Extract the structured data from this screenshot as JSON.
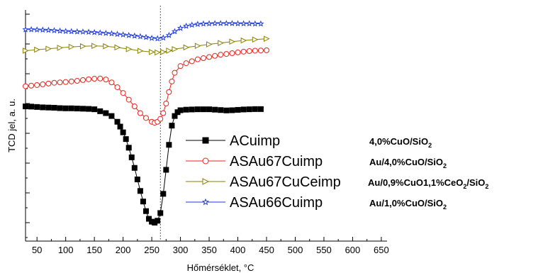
{
  "chart_data": {
    "type": "scatter",
    "xlabel": "Hőmérséklet, °C",
    "ylabel": "TCD jel, a. u.",
    "xlim": [
      30,
      660
    ],
    "ylim": [
      0,
      100
    ],
    "x_ticks": [
      50,
      100,
      150,
      200,
      250,
      300,
      350,
      400,
      450,
      500,
      550,
      600,
      650
    ],
    "y_ticks_labeled": false,
    "grid": false,
    "reference_line_x": 265,
    "legend_position": "bottom-right",
    "series": [
      {
        "name": "ACuimp",
        "description": "4,0%CuO/SiO",
        "description_subscript": "2",
        "color": "#000000",
        "marker": "square",
        "filled": true,
        "x": [
          30,
          40,
          50,
          60,
          70,
          80,
          90,
          100,
          110,
          120,
          130,
          140,
          150,
          160,
          170,
          180,
          190,
          195,
          200,
          205,
          210,
          215,
          220,
          225,
          230,
          235,
          240,
          245,
          250,
          255,
          260,
          265,
          270,
          275,
          280,
          285,
          290,
          295,
          300,
          310,
          320,
          330,
          340,
          350,
          360,
          370,
          380,
          390,
          400,
          410,
          420,
          430,
          440
        ],
        "y": [
          60.5,
          60.4,
          60.2,
          60.0,
          59.9,
          59.8,
          59.6,
          59.5,
          59.5,
          59.4,
          59.3,
          59.2,
          59.0,
          58.0,
          57.0,
          55.5,
          52.5,
          50.0,
          47.0,
          43.5,
          39.0,
          34.0,
          28.5,
          22.5,
          16.5,
          11.0,
          6.0,
          2.0,
          0.5,
          0.0,
          1.0,
          5.0,
          15.0,
          27.5,
          40.5,
          50.5,
          55.5,
          57.5,
          58.5,
          58.8,
          58.9,
          59.0,
          59.0,
          59.0,
          58.8,
          58.6,
          58.4,
          58.5,
          58.7,
          58.9,
          59.0,
          59.1,
          59.1
        ]
      },
      {
        "name": "ASAu67Cuimp",
        "description": "Au/4,0%CuO/SiO",
        "description_subscript": "2",
        "color": "#e8221b",
        "marker": "circle",
        "filled": false,
        "x": [
          30,
          40,
          50,
          60,
          70,
          80,
          90,
          100,
          110,
          120,
          130,
          140,
          150,
          160,
          170,
          180,
          190,
          200,
          210,
          220,
          230,
          240,
          250,
          255,
          260,
          265,
          270,
          275,
          280,
          285,
          290,
          300,
          310,
          320,
          330,
          340,
          350,
          360,
          370,
          380,
          390,
          400,
          410,
          420,
          430,
          440,
          450
        ],
        "y": [
          71.0,
          71.3,
          71.6,
          72.0,
          72.4,
          72.8,
          73.0,
          73.2,
          73.5,
          73.8,
          74.2,
          74.6,
          74.9,
          75.0,
          74.5,
          73.0,
          70.5,
          67.5,
          64.0,
          60.5,
          57.0,
          54.5,
          52.5,
          52.0,
          52.5,
          54.0,
          57.0,
          62.0,
          68.0,
          73.5,
          78.0,
          81.5,
          83.0,
          84.0,
          85.0,
          85.6,
          86.2,
          86.8,
          87.4,
          87.8,
          88.2,
          88.6,
          89.0,
          89.3,
          89.5,
          89.6,
          89.7
        ]
      },
      {
        "name": "ASAu67CuCeimp",
        "description": "Au/0,9%CuO1,1%CeO",
        "description_subscript": "2",
        "description_tail": "/SiO",
        "description_tail_subscript": "2",
        "color": "#8b8000",
        "marker": "triangle-right",
        "filled": false,
        "x": [
          30,
          50,
          70,
          90,
          110,
          130,
          150,
          170,
          190,
          210,
          230,
          250,
          260,
          270,
          280,
          290,
          310,
          330,
          350,
          370,
          390,
          410,
          430,
          450
        ],
        "y": [
          89.5,
          90.0,
          90.5,
          91.0,
          91.5,
          91.8,
          92.0,
          91.8,
          91.2,
          90.3,
          89.4,
          88.8,
          88.6,
          88.8,
          89.5,
          90.3,
          91.2,
          92.0,
          92.8,
          93.5,
          94.2,
          94.8,
          95.3,
          95.7
        ]
      },
      {
        "name": "ASAu66Cuimp",
        "description": "Au/1,0%CuO/SiO",
        "description_subscript": "2",
        "color": "#1f3adb",
        "marker": "star",
        "filled": false,
        "x": [
          30,
          40,
          50,
          60,
          70,
          80,
          90,
          100,
          110,
          120,
          130,
          140,
          150,
          160,
          170,
          180,
          190,
          200,
          210,
          220,
          230,
          240,
          250,
          260,
          270,
          280,
          290,
          300,
          310,
          320,
          330,
          340,
          350,
          360,
          370,
          380,
          390,
          400,
          410,
          420,
          430,
          440
        ],
        "y": [
          100.5,
          100.5,
          100.4,
          100.3,
          100.2,
          100.0,
          99.8,
          99.6,
          99.5,
          99.4,
          99.3,
          99.2,
          99.0,
          98.8,
          98.6,
          98.4,
          98.1,
          97.8,
          97.5,
          97.2,
          96.9,
          96.5,
          96.0,
          95.8,
          96.2,
          97.5,
          99.5,
          101.2,
          102.3,
          102.9,
          103.3,
          103.5,
          103.6,
          103.7,
          103.7,
          103.7,
          103.7,
          103.6,
          103.6,
          103.6,
          103.5,
          103.5
        ]
      }
    ]
  }
}
